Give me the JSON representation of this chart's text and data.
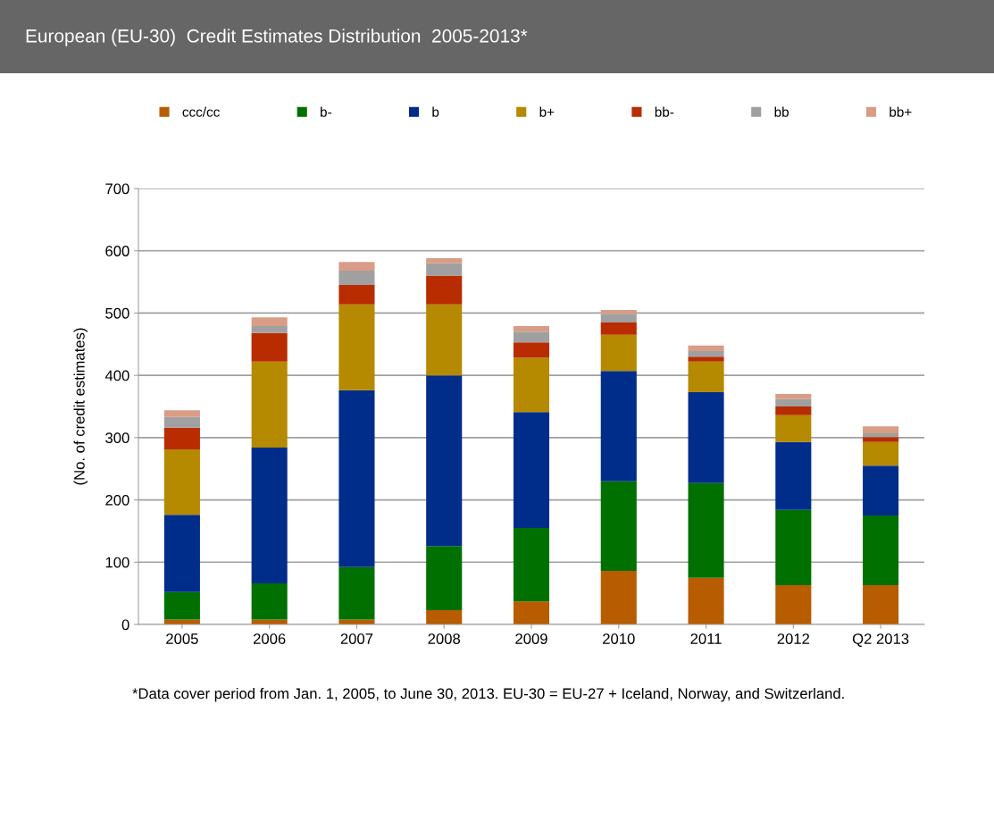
{
  "chart_data": {
    "type": "bar",
    "stacked": true,
    "title": "European (EU-30)  Credit Estimates Distribution  2005-2013*",
    "ylabel": "(No. of credit estimates)",
    "categories": [
      "2005",
      "2006",
      "2007",
      "2008",
      "2009",
      "2010",
      "2011",
      "2012",
      "Q2 2013"
    ],
    "series": [
      {
        "name": "ccc/cc",
        "color": "#b85c00",
        "values": [
          8,
          8,
          8,
          23,
          37,
          86,
          75,
          63,
          63
        ]
      },
      {
        "name": "b-",
        "color": "#007000",
        "values": [
          44,
          58,
          84,
          103,
          118,
          144,
          152,
          121,
          112
        ]
      },
      {
        "name": "b",
        "color": "#002d8a",
        "values": [
          124,
          218,
          284,
          274,
          186,
          177,
          146,
          109,
          80
        ]
      },
      {
        "name": "b+",
        "color": "#b58900",
        "values": [
          105,
          138,
          138,
          114,
          87,
          58,
          49,
          43,
          38
        ]
      },
      {
        "name": "bb-",
        "color": "#b82c00",
        "values": [
          35,
          46,
          31,
          46,
          25,
          20,
          8,
          14,
          8
        ]
      },
      {
        "name": "bb",
        "color": "#a0a0a0",
        "values": [
          17,
          11,
          23,
          20,
          17,
          14,
          9,
          12,
          6
        ]
      },
      {
        "name": "bb+",
        "color": "#d99c86",
        "values": [
          11,
          14,
          14,
          8,
          9,
          6,
          9,
          8,
          11
        ]
      }
    ],
    "ylim": [
      0,
      700
    ],
    "yticks": [
      0,
      100,
      200,
      300,
      400,
      500,
      600,
      700
    ],
    "grid": "y",
    "legend": "top",
    "annotations": [
      "*Data cover period from Jan. 1, 2005, to June 30, 2013. EU-30 = EU-27 + Iceland, Norway, and Switzerland."
    ]
  }
}
